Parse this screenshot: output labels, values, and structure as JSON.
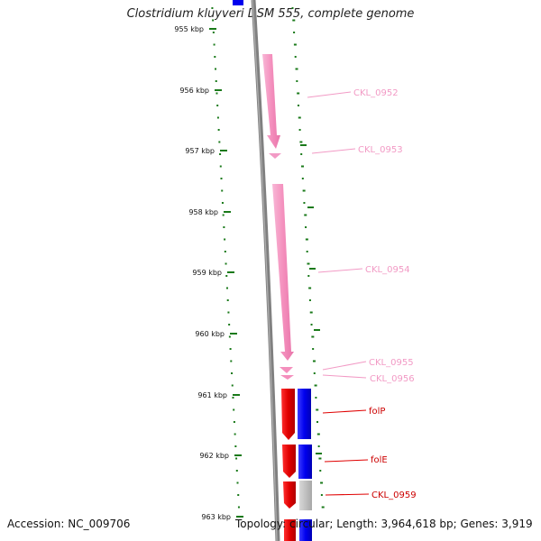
{
  "title": "Clostridium kluyveri DSM 555, complete genome",
  "accession": "Accession: NC_009706",
  "summary": "Topology: circular; Length: 3,964,618 bp; Genes: 3,919",
  "ruler": [
    {
      "label": "955 kbp"
    },
    {
      "label": "956 kbp"
    },
    {
      "label": "957 kbp"
    },
    {
      "label": "958 kbp"
    },
    {
      "label": "959 kbp"
    },
    {
      "label": "960 kbp"
    },
    {
      "label": "961 kbp"
    },
    {
      "label": "962 kbp"
    },
    {
      "label": "963 kbp"
    }
  ],
  "genes": [
    {
      "label": "CKL_0952",
      "color": "#f29ac5"
    },
    {
      "label": "CKL_0953",
      "color": "#f29ac5"
    },
    {
      "label": "CKL_0954",
      "color": "#f29ac5"
    },
    {
      "label": "CKL_0955",
      "color": "#f29ac5"
    },
    {
      "label": "CKL_0956",
      "color": "#f29ac5"
    },
    {
      "label": "folP",
      "color": "#e00000"
    },
    {
      "label": "folE",
      "color": "#e00000"
    },
    {
      "label": "CKL_0959",
      "color": "#e00000"
    }
  ],
  "colors": {
    "backbone": "#808080",
    "ticks": "#1a7a1a",
    "cds_forward": "#e00000",
    "cds_reverse": "#0000ee",
    "cds_pink": "#f29ac5",
    "gray_feature": "#bdbdbd"
  }
}
